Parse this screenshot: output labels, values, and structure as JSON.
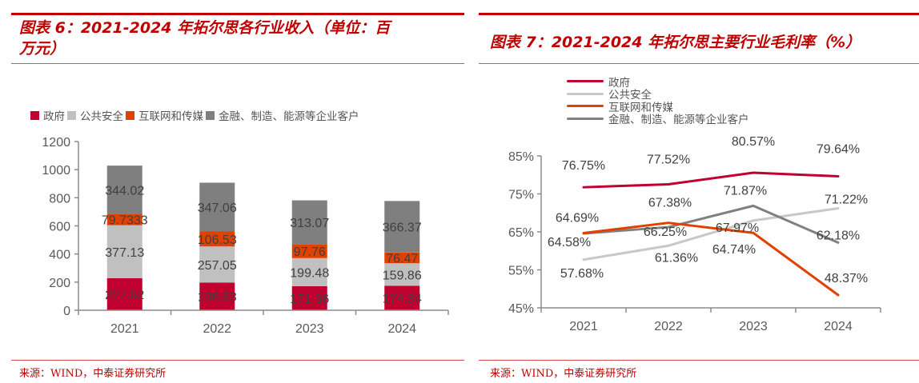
{
  "left": {
    "title_line1": "图表 6：2021-2024 年拓尔思各行业收入（单位：百",
    "title_line2": "万元）",
    "source": "来源：WIND，中泰证券研究所"
  },
  "right": {
    "title": "图表 7：2021-2024 年拓尔思主要行业毛利率（%）",
    "source": "来源：WIND，中泰证券研究所"
  },
  "chart_data": [
    {
      "type": "bar",
      "stacked": true,
      "title": "2021-2024年拓尔思各行业收入（单位：百万元）",
      "xlabel": "",
      "ylabel": "",
      "categories": [
        "2021",
        "2022",
        "2023",
        "2024"
      ],
      "ylim": [
        0,
        1200
      ],
      "yticks": [
        0,
        200,
        400,
        600,
        800,
        1000,
        1200
      ],
      "ytick_labels": [
        "0",
        "200",
        "400",
        "600",
        "800",
        "1000",
        "1200"
      ],
      "legend_position": "top-left",
      "grid": false,
      "series": [
        {
          "name": "政府",
          "color": "#c0002f",
          "values": [
            227.82,
            196.63,
            171.36,
            174.34
          ],
          "labels": [
            "227.82",
            "196.63",
            "171.36",
            "174.34"
          ]
        },
        {
          "name": "公共安全",
          "color": "#c0c0c0",
          "values": [
            377.13,
            257.05,
            199.48,
            159.86
          ],
          "labels": [
            "377.13",
            "257.05",
            "199.48",
            "159.86"
          ]
        },
        {
          "name": "互联网和传媒",
          "color": "#e04000",
          "values": [
            79.7333,
            106.53,
            97.76,
            76.47
          ],
          "labels": [
            "79.7333",
            "106.53",
            "97.76",
            "76.47"
          ]
        },
        {
          "name": "金融、制造、能源等企业客户",
          "color": "#7f7f7f",
          "values": [
            344.02,
            347.06,
            313.07,
            366.37
          ],
          "labels": [
            "344.02",
            "347.06",
            "313.07",
            "366.37"
          ]
        }
      ]
    },
    {
      "type": "line",
      "title": "2021-2024年拓尔思主要行业毛利率（%）",
      "xlabel": "",
      "ylabel": "",
      "categories": [
        "2021",
        "2022",
        "2023",
        "2024"
      ],
      "ylim": [
        45,
        85
      ],
      "yticks": [
        45,
        55,
        65,
        75,
        85
      ],
      "ytick_labels": [
        "45%",
        "55%",
        "65%",
        "75%",
        "85%"
      ],
      "legend_position": "top",
      "grid": false,
      "series": [
        {
          "name": "政府",
          "color": "#c0002f",
          "values": [
            76.75,
            77.52,
            80.57,
            79.64
          ],
          "labels": [
            "76.75%",
            "77.52%",
            "80.57%",
            "79.64%"
          ]
        },
        {
          "name": "公共安全",
          "color": "#c8c8c8",
          "values": [
            57.68,
            61.36,
            67.97,
            71.22
          ],
          "labels": [
            "57.68%",
            "61.36%",
            "67.97%",
            "71.22%"
          ]
        },
        {
          "name": "互联网和传媒",
          "color": "#e04000",
          "values": [
            64.69,
            67.38,
            64.74,
            48.37
          ],
          "labels": [
            "64.69%",
            "67.38%",
            "64.74%",
            "48.37%"
          ]
        },
        {
          "name": "金融、制造、能源等企业客户",
          "color": "#808080",
          "values": [
            64.58,
            66.25,
            71.87,
            62.18
          ],
          "labels": [
            "64.58%",
            "66.25%",
            "71.87%",
            "62.18%"
          ]
        }
      ]
    }
  ]
}
